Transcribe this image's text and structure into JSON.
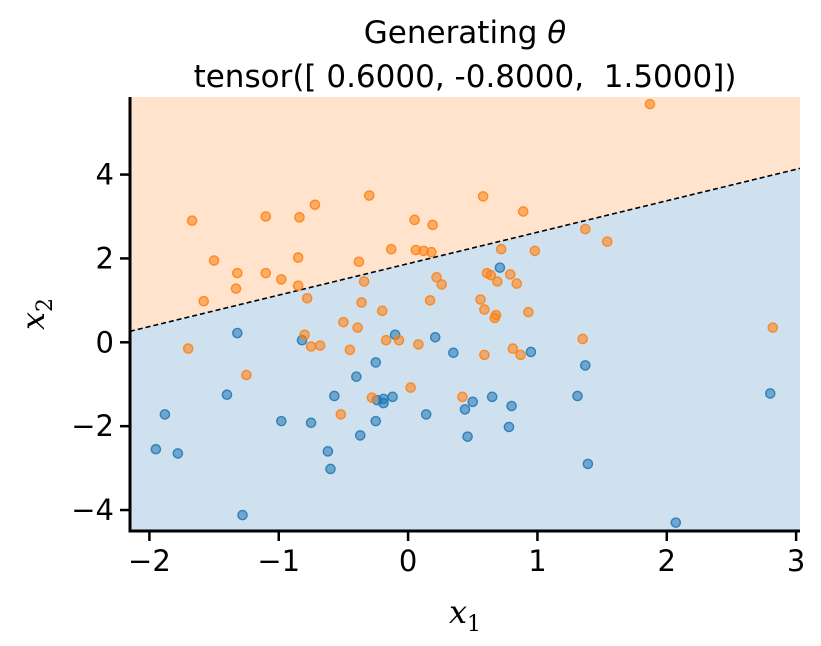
{
  "chart_data": {
    "type": "scatter",
    "title_line1_prefix": "Generating ",
    "title_line1_symbol": "θ",
    "title_line2": "tensor([ 0.6000, -0.8000,  1.5000])",
    "xlabel": "x",
    "xlabel_sub": "1",
    "ylabel": "x",
    "ylabel_sub": "2",
    "xlim": [
      -2.15,
      3.03
    ],
    "ylim": [
      -4.5,
      5.85
    ],
    "xticks": [
      -2,
      -1,
      0,
      1,
      2,
      3
    ],
    "xtick_labels": [
      "−2",
      "−1",
      "0",
      "1",
      "2",
      "3"
    ],
    "yticks": [
      -4,
      -2,
      0,
      2,
      4
    ],
    "ytick_labels": [
      "−4",
      "−2",
      "0",
      "2",
      "4"
    ],
    "grid": false,
    "legend": "none",
    "decision_boundary": {
      "w": [
        0.6,
        -0.8
      ],
      "b": 1.5,
      "style": "dashed"
    },
    "colors": {
      "class0": "#1f77b4",
      "class1": "#ff7f0e",
      "region0": "#cfe1ee",
      "region1": "#ffe3cc",
      "boundary": "#000000"
    },
    "series": [
      {
        "class": 0,
        "points": [
          [
            -1.95,
            -2.55
          ],
          [
            -1.88,
            -1.72
          ],
          [
            -1.78,
            -2.65
          ],
          [
            -1.4,
            -1.25
          ],
          [
            -1.32,
            0.22
          ],
          [
            -1.28,
            -4.12
          ],
          [
            -0.98,
            -1.88
          ],
          [
            -0.82,
            0.05
          ],
          [
            -0.75,
            -1.92
          ],
          [
            -0.62,
            -2.6
          ],
          [
            -0.6,
            -3.02
          ],
          [
            -0.57,
            -1.28
          ],
          [
            -0.4,
            -0.82
          ],
          [
            -0.37,
            -2.22
          ],
          [
            -0.25,
            -0.48
          ],
          [
            -0.25,
            -1.88
          ],
          [
            -0.24,
            -1.38
          ],
          [
            -0.19,
            -1.35
          ],
          [
            -0.19,
            -1.45
          ],
          [
            -0.12,
            -1.3
          ],
          [
            -0.1,
            0.18
          ],
          [
            0.14,
            -1.72
          ],
          [
            0.21,
            0.12
          ],
          [
            0.35,
            -0.25
          ],
          [
            0.44,
            -1.6
          ],
          [
            0.46,
            -2.25
          ],
          [
            0.5,
            -1.42
          ],
          [
            0.65,
            -1.3
          ],
          [
            0.71,
            1.78
          ],
          [
            0.78,
            -2.02
          ],
          [
            0.8,
            -1.52
          ],
          [
            0.95,
            -0.23
          ],
          [
            1.31,
            -1.28
          ],
          [
            1.37,
            -0.55
          ],
          [
            1.39,
            -2.9
          ],
          [
            2.07,
            -4.3
          ],
          [
            2.8,
            -1.22
          ]
        ]
      },
      {
        "class": 1,
        "points": [
          [
            -1.67,
            2.9
          ],
          [
            -1.7,
            -0.15
          ],
          [
            -1.58,
            0.98
          ],
          [
            -1.5,
            1.95
          ],
          [
            -1.33,
            1.28
          ],
          [
            -1.32,
            1.65
          ],
          [
            -1.25,
            -0.78
          ],
          [
            -1.1,
            3.0
          ],
          [
            -1.1,
            1.65
          ],
          [
            -0.98,
            1.5
          ],
          [
            -0.85,
            2.02
          ],
          [
            -0.85,
            1.35
          ],
          [
            -0.84,
            2.98
          ],
          [
            -0.8,
            0.18
          ],
          [
            -0.78,
            1.05
          ],
          [
            -0.75,
            -0.1
          ],
          [
            -0.72,
            3.28
          ],
          [
            -0.68,
            -0.08
          ],
          [
            -0.52,
            -1.72
          ],
          [
            -0.5,
            0.48
          ],
          [
            -0.45,
            -0.18
          ],
          [
            -0.39,
            0.35
          ],
          [
            -0.38,
            1.92
          ],
          [
            -0.36,
            0.95
          ],
          [
            -0.34,
            1.45
          ],
          [
            -0.3,
            3.5
          ],
          [
            -0.28,
            -1.32
          ],
          [
            -0.2,
            0.75
          ],
          [
            -0.17,
            0.05
          ],
          [
            -0.13,
            2.22
          ],
          [
            -0.07,
            0.05
          ],
          [
            0.02,
            -1.08
          ],
          [
            0.05,
            2.92
          ],
          [
            0.06,
            2.2
          ],
          [
            0.08,
            -0.05
          ],
          [
            0.12,
            2.18
          ],
          [
            0.17,
            1.0
          ],
          [
            0.18,
            2.15
          ],
          [
            0.19,
            2.8
          ],
          [
            0.22,
            1.55
          ],
          [
            0.26,
            1.38
          ],
          [
            0.42,
            -1.3
          ],
          [
            0.56,
            1.02
          ],
          [
            0.58,
            3.48
          ],
          [
            0.59,
            0.78
          ],
          [
            0.59,
            -0.3
          ],
          [
            0.61,
            1.65
          ],
          [
            0.64,
            1.6
          ],
          [
            0.67,
            0.58
          ],
          [
            0.68,
            0.65
          ],
          [
            0.69,
            1.45
          ],
          [
            0.72,
            2.22
          ],
          [
            0.79,
            1.62
          ],
          [
            0.81,
            -0.15
          ],
          [
            0.84,
            1.4
          ],
          [
            0.87,
            -0.3
          ],
          [
            0.89,
            3.12
          ],
          [
            0.93,
            0.72
          ],
          [
            0.98,
            2.18
          ],
          [
            1.35,
            0.08
          ],
          [
            1.37,
            2.7
          ],
          [
            1.54,
            2.4
          ],
          [
            1.87,
            5.68
          ],
          [
            2.82,
            0.35
          ]
        ]
      }
    ]
  }
}
